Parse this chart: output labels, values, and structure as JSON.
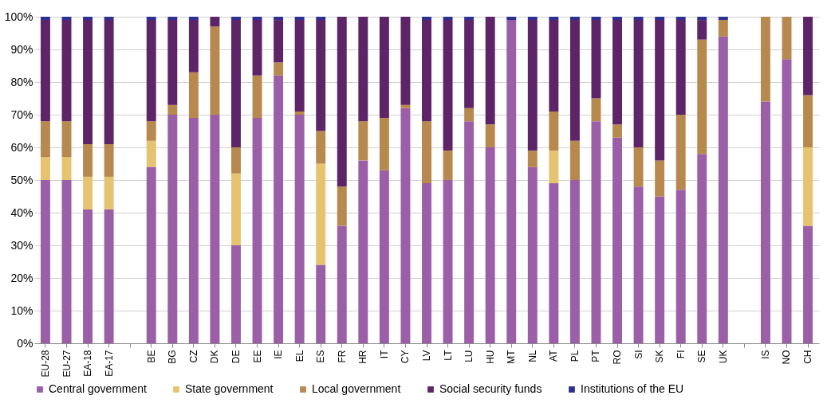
{
  "chart_data": {
    "type": "bar",
    "stacked": true,
    "legend": "bottom",
    "grid": "y",
    "categories": [
      "EU-28",
      "EU-27",
      "EA-18",
      "EA-17",
      null,
      "BE",
      "BG",
      "CZ",
      "DK",
      "DE",
      "EE",
      "IE",
      "EL",
      "ES",
      "FR",
      "HR",
      "IT",
      "CY",
      "LV",
      "LT",
      "LU",
      "HU",
      "MT",
      "NL",
      "AT",
      "PL",
      "PT",
      "RO",
      "SI",
      "SK",
      "FI",
      "SE",
      "UK",
      null,
      "IS",
      "NO",
      "CH"
    ],
    "ylim": [
      0,
      100
    ],
    "yticks": [
      {
        "value": 0,
        "label": "0%"
      },
      {
        "value": 10,
        "label": "10%"
      },
      {
        "value": 20,
        "label": "20%"
      },
      {
        "value": 30,
        "label": "30%"
      },
      {
        "value": 40,
        "label": "40%"
      },
      {
        "value": 50,
        "label": "50%"
      },
      {
        "value": 60,
        "label": "60%"
      },
      {
        "value": 70,
        "label": "70%"
      },
      {
        "value": 80,
        "label": "80%"
      },
      {
        "value": 90,
        "label": "90%"
      },
      {
        "value": 100,
        "label": "100%"
      }
    ],
    "series": [
      {
        "name": "Central government",
        "color": "#9b5fa8",
        "values": [
          50,
          50,
          41,
          41,
          null,
          54,
          70,
          69,
          70,
          30,
          69,
          82,
          70,
          24,
          36,
          56,
          53,
          72,
          49,
          50,
          68,
          60,
          99,
          54,
          49,
          50,
          68,
          63,
          48,
          45,
          47,
          58,
          94,
          null,
          74,
          87,
          36
        ]
      },
      {
        "name": "State government",
        "color": "#e6c370",
        "values": [
          7,
          7,
          10,
          10,
          null,
          8,
          0,
          0,
          0,
          22,
          0,
          0,
          0,
          31,
          0,
          0,
          0,
          0,
          0,
          0,
          0,
          0,
          0,
          0,
          10,
          0,
          0,
          0,
          0,
          0,
          0,
          0,
          0,
          null,
          0,
          0,
          24
        ]
      },
      {
        "name": "Local government",
        "color": "#b8894e",
        "values": [
          11,
          11,
          10,
          10,
          null,
          6,
          3,
          14,
          27,
          8,
          13,
          4,
          1,
          10,
          12,
          12,
          16,
          1,
          19,
          9,
          4,
          7,
          0,
          5,
          12,
          12,
          7,
          4,
          12,
          11,
          23,
          35,
          5,
          null,
          26,
          13,
          16
        ]
      },
      {
        "name": "Social security funds",
        "color": "#5e2468",
        "values": [
          31,
          31,
          38,
          38,
          null,
          31,
          26,
          16,
          3,
          39,
          17,
          13,
          28,
          34,
          52,
          32,
          31,
          27,
          31,
          40,
          27,
          33,
          0,
          40,
          28,
          37,
          24,
          32,
          39,
          43,
          29,
          6,
          0,
          null,
          0,
          0,
          24
        ]
      },
      {
        "name": "Institutions of the EU",
        "color": "#2e3192",
        "values": [
          1,
          1,
          1,
          1,
          null,
          1,
          1,
          1,
          0,
          1,
          1,
          1,
          1,
          1,
          0,
          0,
          0,
          0,
          1,
          1,
          1,
          0,
          1,
          1,
          1,
          1,
          1,
          1,
          1,
          1,
          1,
          1,
          1,
          null,
          0,
          0,
          0
        ]
      }
    ]
  }
}
